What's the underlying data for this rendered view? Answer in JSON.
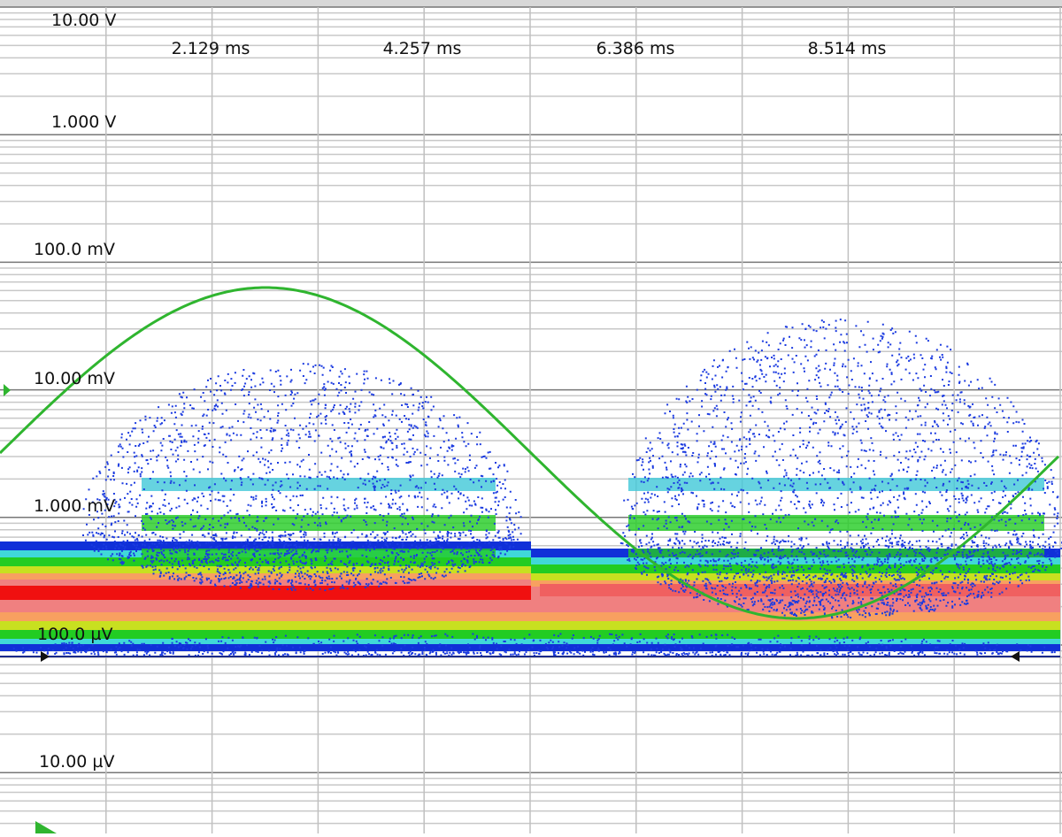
{
  "screen": {
    "y_labels": [
      "10.00 V",
      "1.000 V",
      "100.0 mV",
      "10.00 mV",
      "1.000 mV",
      "100.0 µV",
      "10.00 µV"
    ],
    "x_labels": [
      "2.129 ms",
      "4.257 ms",
      "6.386 ms",
      "8.514 ms"
    ]
  }
}
